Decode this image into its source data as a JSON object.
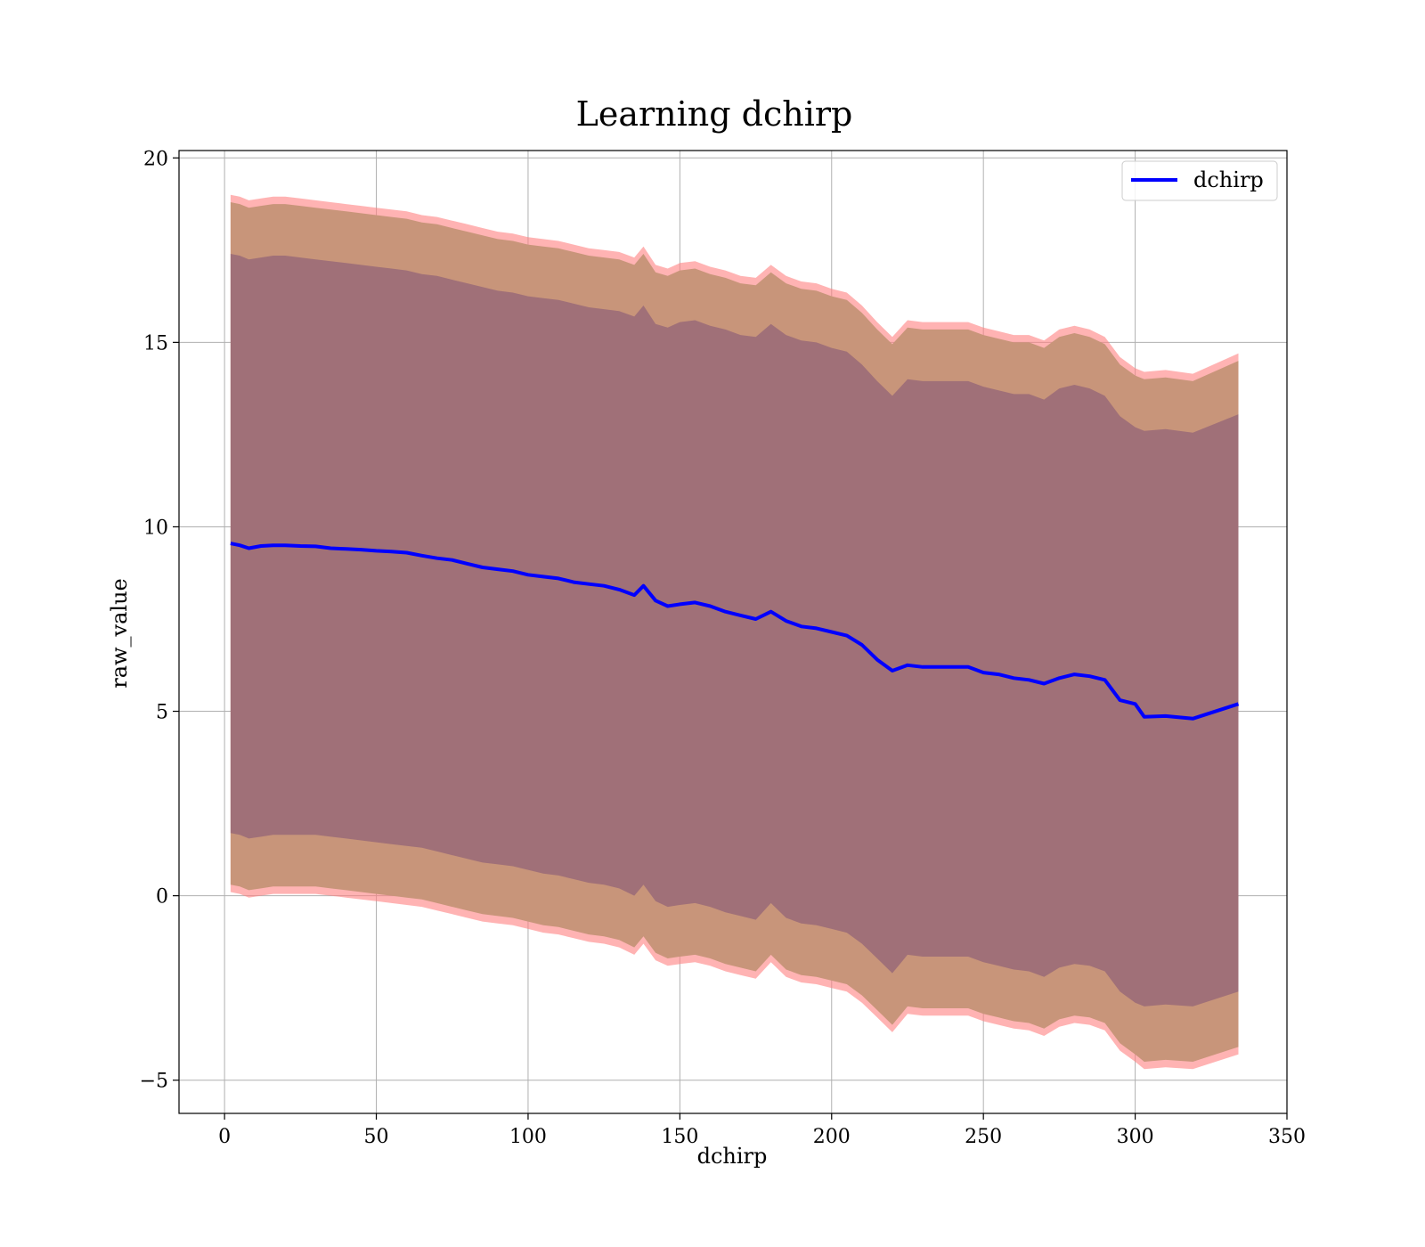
{
  "chart_data": {
    "type": "area",
    "title": "Learning dchirp",
    "xlabel": "dchirp",
    "ylabel": "raw_value",
    "xlim": [
      -15,
      350
    ],
    "ylim": [
      -5.9,
      20.2
    ],
    "x_ticks": [
      0,
      50,
      100,
      150,
      200,
      250,
      300,
      350
    ],
    "y_ticks": [
      -5,
      0,
      5,
      10,
      15,
      20
    ],
    "x_tick_labels": [
      "0",
      "50",
      "100",
      "150",
      "200",
      "250",
      "300",
      "350"
    ],
    "y_tick_labels": [
      "−5",
      "0",
      "5",
      "10",
      "15",
      "20"
    ],
    "grid": true,
    "legend": {
      "entries": [
        "dchirp"
      ],
      "placement": "top-right"
    },
    "colors": {
      "line": "#0000ff",
      "outer_band": "#ff8080",
      "middle_band": "#c8957a",
      "inner_band": "#a07078"
    },
    "x": [
      2,
      5,
      8,
      12,
      16,
      20,
      25,
      30,
      35,
      40,
      45,
      50,
      55,
      60,
      65,
      70,
      75,
      80,
      85,
      90,
      95,
      100,
      105,
      110,
      115,
      120,
      125,
      130,
      135,
      138,
      142,
      146,
      150,
      155,
      160,
      165,
      170,
      175,
      180,
      185,
      190,
      195,
      200,
      205,
      210,
      215,
      220,
      225,
      230,
      235,
      240,
      245,
      250,
      255,
      260,
      265,
      270,
      275,
      280,
      285,
      290,
      295,
      300,
      303,
      310,
      319,
      334
    ],
    "series": [
      {
        "name": "dchirp",
        "values": [
          9.55,
          9.5,
          9.42,
          9.48,
          9.5,
          9.5,
          9.48,
          9.47,
          9.42,
          9.4,
          9.38,
          9.35,
          9.33,
          9.3,
          9.22,
          9.15,
          9.1,
          9.0,
          8.9,
          8.85,
          8.8,
          8.7,
          8.65,
          8.6,
          8.5,
          8.45,
          8.4,
          8.3,
          8.15,
          8.4,
          8.0,
          7.85,
          7.9,
          7.95,
          7.85,
          7.7,
          7.6,
          7.5,
          7.7,
          7.45,
          7.3,
          7.25,
          7.15,
          7.05,
          6.8,
          6.4,
          6.1,
          6.25,
          6.2,
          6.2,
          6.2,
          6.2,
          6.05,
          6.0,
          5.9,
          5.85,
          5.75,
          5.9,
          6.0,
          5.95,
          5.85,
          5.3,
          5.2,
          4.85,
          4.87,
          4.8,
          5.2
        ]
      }
    ],
    "bands": [
      {
        "level": "outer",
        "upper": [
          19.0,
          18.95,
          18.85,
          18.9,
          18.95,
          18.95,
          18.9,
          18.85,
          18.8,
          18.75,
          18.7,
          18.65,
          18.6,
          18.55,
          18.45,
          18.4,
          18.3,
          18.2,
          18.1,
          18.0,
          17.95,
          17.85,
          17.8,
          17.75,
          17.65,
          17.55,
          17.5,
          17.45,
          17.3,
          17.6,
          17.1,
          17.0,
          17.15,
          17.2,
          17.05,
          16.95,
          16.8,
          16.75,
          17.1,
          16.8,
          16.65,
          16.6,
          16.45,
          16.35,
          16.0,
          15.55,
          15.15,
          15.6,
          15.55,
          15.55,
          15.55,
          15.55,
          15.4,
          15.3,
          15.2,
          15.2,
          15.05,
          15.35,
          15.45,
          15.35,
          15.15,
          14.6,
          14.3,
          14.2,
          14.25,
          14.15,
          14.7
        ],
        "lower": [
          0.1,
          0.05,
          -0.05,
          0.0,
          0.05,
          0.05,
          0.05,
          0.05,
          0.0,
          -0.05,
          -0.1,
          -0.15,
          -0.2,
          -0.25,
          -0.3,
          -0.4,
          -0.5,
          -0.6,
          -0.7,
          -0.75,
          -0.8,
          -0.9,
          -1.0,
          -1.05,
          -1.15,
          -1.25,
          -1.3,
          -1.4,
          -1.6,
          -1.3,
          -1.75,
          -1.9,
          -1.85,
          -1.8,
          -1.9,
          -2.05,
          -2.15,
          -2.25,
          -1.8,
          -2.2,
          -2.35,
          -2.4,
          -2.5,
          -2.6,
          -2.9,
          -3.3,
          -3.7,
          -3.2,
          -3.25,
          -3.25,
          -3.25,
          -3.25,
          -3.4,
          -3.5,
          -3.6,
          -3.65,
          -3.8,
          -3.55,
          -3.45,
          -3.5,
          -3.65,
          -4.2,
          -4.5,
          -4.7,
          -4.65,
          -4.7,
          -4.3
        ]
      },
      {
        "level": "middle",
        "upper": [
          18.8,
          18.75,
          18.65,
          18.7,
          18.75,
          18.75,
          18.7,
          18.65,
          18.6,
          18.55,
          18.5,
          18.45,
          18.4,
          18.35,
          18.25,
          18.2,
          18.1,
          18.0,
          17.9,
          17.8,
          17.75,
          17.65,
          17.6,
          17.55,
          17.45,
          17.35,
          17.3,
          17.25,
          17.1,
          17.4,
          16.9,
          16.8,
          16.95,
          17.0,
          16.85,
          16.75,
          16.6,
          16.55,
          16.9,
          16.6,
          16.45,
          16.4,
          16.25,
          16.15,
          15.8,
          15.35,
          14.95,
          15.4,
          15.35,
          15.35,
          15.35,
          15.35,
          15.2,
          15.1,
          15.0,
          15.0,
          14.85,
          15.15,
          15.25,
          15.15,
          14.95,
          14.4,
          14.1,
          14.0,
          14.05,
          13.95,
          14.5
        ],
        "lower": [
          0.3,
          0.25,
          0.15,
          0.2,
          0.25,
          0.25,
          0.25,
          0.25,
          0.2,
          0.15,
          0.1,
          0.05,
          0.0,
          -0.05,
          -0.1,
          -0.2,
          -0.3,
          -0.4,
          -0.5,
          -0.55,
          -0.6,
          -0.7,
          -0.8,
          -0.85,
          -0.95,
          -1.05,
          -1.1,
          -1.2,
          -1.4,
          -1.1,
          -1.55,
          -1.7,
          -1.65,
          -1.6,
          -1.7,
          -1.85,
          -1.95,
          -2.05,
          -1.6,
          -2.0,
          -2.15,
          -2.2,
          -2.3,
          -2.4,
          -2.7,
          -3.1,
          -3.5,
          -3.0,
          -3.05,
          -3.05,
          -3.05,
          -3.05,
          -3.2,
          -3.3,
          -3.4,
          -3.45,
          -3.6,
          -3.35,
          -3.25,
          -3.3,
          -3.45,
          -4.0,
          -4.3,
          -4.5,
          -4.45,
          -4.5,
          -4.1
        ]
      },
      {
        "level": "inner",
        "upper": [
          17.4,
          17.35,
          17.25,
          17.3,
          17.35,
          17.35,
          17.3,
          17.25,
          17.2,
          17.15,
          17.1,
          17.05,
          17.0,
          16.95,
          16.85,
          16.8,
          16.7,
          16.6,
          16.5,
          16.4,
          16.35,
          16.25,
          16.2,
          16.15,
          16.05,
          15.95,
          15.9,
          15.85,
          15.7,
          16.0,
          15.5,
          15.4,
          15.55,
          15.6,
          15.45,
          15.35,
          15.2,
          15.15,
          15.5,
          15.2,
          15.05,
          15.0,
          14.85,
          14.75,
          14.4,
          13.95,
          13.55,
          14.0,
          13.95,
          13.95,
          13.95,
          13.95,
          13.8,
          13.7,
          13.6,
          13.6,
          13.45,
          13.75,
          13.85,
          13.75,
          13.55,
          13.0,
          12.7,
          12.6,
          12.65,
          12.55,
          13.05
        ],
        "lower": [
          1.7,
          1.65,
          1.55,
          1.6,
          1.65,
          1.65,
          1.65,
          1.65,
          1.6,
          1.55,
          1.5,
          1.45,
          1.4,
          1.35,
          1.3,
          1.2,
          1.1,
          1.0,
          0.9,
          0.85,
          0.8,
          0.7,
          0.6,
          0.55,
          0.45,
          0.35,
          0.3,
          0.2,
          0.0,
          0.3,
          -0.15,
          -0.3,
          -0.25,
          -0.2,
          -0.3,
          -0.45,
          -0.55,
          -0.65,
          -0.2,
          -0.6,
          -0.75,
          -0.8,
          -0.9,
          -1.0,
          -1.3,
          -1.7,
          -2.1,
          -1.6,
          -1.65,
          -1.65,
          -1.65,
          -1.65,
          -1.8,
          -1.9,
          -2.0,
          -2.05,
          -2.2,
          -1.95,
          -1.85,
          -1.9,
          -2.05,
          -2.6,
          -2.9,
          -3.0,
          -2.95,
          -3.0,
          -2.6
        ]
      }
    ]
  }
}
